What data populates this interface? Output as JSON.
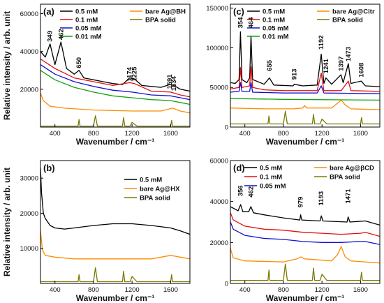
{
  "chart_data": [
    {
      "panel": "(a)",
      "type": "line",
      "xlabel": "Wavenumber / cm⁻¹",
      "ylabel": "Relative intensity / arb. unit",
      "xlim": [
        250,
        1800
      ],
      "ylim": [
        0,
        65000
      ],
      "xticks": [
        400,
        800,
        1200,
        1600
      ],
      "yticks": [
        20000,
        40000,
        60000
      ],
      "legend": "top",
      "grid": false,
      "peak_labels": [
        {
          "text": "349",
          "x": 349,
          "y": 44000
        },
        {
          "text": "462",
          "x": 462,
          "y": 45000
        },
        {
          "text": "650",
          "x": 650,
          "y": 30000
        },
        {
          "text": "1174",
          "x": 1174,
          "y": 23000
        },
        {
          "text": "1225",
          "x": 1225,
          "y": 23000
        },
        {
          "text": "1591",
          "x": 1591,
          "y": 19000
        },
        {
          "text": "1634",
          "x": 1634,
          "y": 18000
        }
      ],
      "series": [
        {
          "name": "0.5 mM",
          "color": "#000000",
          "x": [
            250,
            300,
            349,
            400,
            462,
            520,
            600,
            650,
            700,
            800,
            900,
            1000,
            1100,
            1174,
            1225,
            1300,
            1400,
            1500,
            1591,
            1634,
            1700,
            1800
          ],
          "y": [
            40000,
            37000,
            44000,
            33000,
            45000,
            31000,
            28000,
            30000,
            26000,
            25000,
            24000,
            23000,
            22500,
            26000,
            25500,
            22000,
            21500,
            21000,
            22500,
            22000,
            20000,
            19000
          ]
        },
        {
          "name": "0.1 mM",
          "color": "#e01010",
          "x": [
            250,
            400,
            600,
            800,
            1000,
            1174,
            1225,
            1400,
            1600,
            1700,
            1800
          ],
          "y": [
            36000,
            31000,
            26000,
            24000,
            22000,
            23500,
            23000,
            19000,
            18500,
            17000,
            16000
          ]
        },
        {
          "name": "0.05 mM",
          "color": "#1010d0",
          "x": [
            250,
            400,
            600,
            800,
            1000,
            1200,
            1400,
            1600,
            1700,
            1800
          ],
          "y": [
            33000,
            28000,
            24000,
            21500,
            19500,
            18500,
            17000,
            16500,
            15500,
            14500
          ]
        },
        {
          "name": "0.01 mM",
          "color": "#12a012",
          "x": [
            250,
            400,
            600,
            800,
            1000,
            1200,
            1400,
            1600,
            1700,
            1800
          ],
          "y": [
            30000,
            25000,
            21000,
            18500,
            16500,
            15500,
            14500,
            14000,
            13000,
            12000
          ]
        },
        {
          "name": "bare Ag@BH",
          "color": "#ff8c00",
          "x": [
            250,
            280,
            350,
            500,
            800,
            1200,
            1500,
            1620,
            1700,
            1800
          ],
          "y": [
            18000,
            14000,
            11000,
            10000,
            9000,
            8500,
            8500,
            10000,
            8500,
            7500
          ]
        },
        {
          "name": "BPA solid",
          "color": "#7a7a00",
          "x": [
            250,
            400,
            640,
            650,
            660,
            800,
            820,
            840,
            900,
            1100,
            1112,
            1124,
            1180,
            1200,
            1250,
            1450,
            1600,
            1610,
            1620,
            1800
          ],
          "y": [
            500,
            500,
            500,
            4000,
            500,
            500,
            6000,
            500,
            500,
            500,
            5000,
            500,
            500,
            2500,
            500,
            500,
            500,
            3500,
            500,
            500
          ]
        }
      ]
    },
    {
      "panel": "(b)",
      "type": "line",
      "xlabel": "Wavenumber / cm⁻¹",
      "ylabel": "Relative intensity / arb. unit",
      "xlim": [
        250,
        1800
      ],
      "ylim": [
        0,
        35000
      ],
      "xticks": [
        400,
        800,
        1200,
        1600
      ],
      "yticks": [
        10000,
        20000,
        30000
      ],
      "legend": "top-right",
      "grid": false,
      "series": [
        {
          "name": "0.5 mM",
          "color": "#000000",
          "x": [
            250,
            260,
            280,
            300,
            350,
            400,
            500,
            600,
            800,
            1000,
            1200,
            1400,
            1600,
            1700,
            1800
          ],
          "y": [
            33000,
            26000,
            20000,
            18500,
            16500,
            15800,
            15500,
            15800,
            16500,
            17000,
            17000,
            16500,
            15800,
            15000,
            14000
          ]
        },
        {
          "name": "bare Ag@HX",
          "color": "#ff8c00",
          "x": [
            250,
            270,
            300,
            400,
            600,
            800,
            1000,
            1200,
            1400,
            1600,
            1700,
            1800
          ],
          "y": [
            15000,
            9500,
            8000,
            7500,
            7000,
            7000,
            7000,
            7000,
            7000,
            8000,
            7500,
            7000
          ]
        },
        {
          "name": "BPA solid",
          "color": "#7a7a00",
          "x": [
            250,
            400,
            640,
            650,
            660,
            800,
            820,
            840,
            900,
            1100,
            1112,
            1124,
            1180,
            1200,
            1250,
            1450,
            1600,
            1610,
            1620,
            1800
          ],
          "y": [
            500,
            500,
            500,
            2500,
            500,
            500,
            4500,
            500,
            500,
            500,
            3500,
            500,
            500,
            2000,
            500,
            500,
            500,
            2500,
            500,
            500
          ]
        }
      ]
    },
    {
      "panel": "(c)",
      "type": "line",
      "xlabel": "Wavenumber / cm⁻¹",
      "ylabel": "",
      "xlim": [
        250,
        1800
      ],
      "ylim": [
        0,
        155000
      ],
      "xticks": [
        400,
        800,
        1200,
        1600
      ],
      "yticks": [
        0,
        50000,
        100000,
        150000
      ],
      "legend": "top",
      "grid": false,
      "peak_labels": [
        {
          "text": "354",
          "x": 354,
          "y": 122000
        },
        {
          "text": "464",
          "x": 464,
          "y": 122000
        },
        {
          "text": "655",
          "x": 655,
          "y": 68000
        },
        {
          "text": "913",
          "x": 913,
          "y": 57000
        },
        {
          "text": "1192",
          "x": 1192,
          "y": 95000
        },
        {
          "text": "1241",
          "x": 1241,
          "y": 65000
        },
        {
          "text": "1397",
          "x": 1397,
          "y": 68000
        },
        {
          "text": "1473",
          "x": 1473,
          "y": 80000
        },
        {
          "text": "1608",
          "x": 1608,
          "y": 60000
        }
      ],
      "series": [
        {
          "name": "0.5 mM",
          "color": "#000000",
          "x": [
            250,
            300,
            340,
            354,
            370,
            420,
            450,
            464,
            480,
            600,
            655,
            700,
            900,
            913,
            1000,
            1150,
            1192,
            1220,
            1241,
            1300,
            1397,
            1420,
            1473,
            1500,
            1608,
            1650,
            1800
          ],
          "y": [
            56000,
            55000,
            60000,
            120000,
            60000,
            56000,
            62000,
            115000,
            60000,
            54000,
            62000,
            53000,
            52000,
            54000,
            52000,
            53000,
            92000,
            55000,
            62000,
            54000,
            66000,
            56000,
            80000,
            55000,
            58000,
            52000,
            51000
          ]
        },
        {
          "name": "0.1 mM",
          "color": "#e01010",
          "x": [
            250,
            340,
            354,
            370,
            450,
            464,
            480,
            600,
            800,
            1150,
            1192,
            1220,
            1400,
            1473,
            1500,
            1800
          ],
          "y": [
            48000,
            50000,
            75000,
            50000,
            52000,
            76000,
            50000,
            47000,
            46000,
            46000,
            68000,
            46000,
            46000,
            58000,
            46000,
            45000
          ]
        },
        {
          "name": "0.05 mM",
          "color": "#1010d0",
          "x": [
            250,
            340,
            354,
            370,
            450,
            464,
            480,
            800,
            1150,
            1192,
            1220,
            1800
          ],
          "y": [
            44000,
            45000,
            56000,
            45000,
            45000,
            56000,
            44000,
            43000,
            43000,
            52000,
            43000,
            42000
          ]
        },
        {
          "name": "0.01 mM",
          "color": "#12a012",
          "x": [
            250,
            800,
            1800
          ],
          "y": [
            36000,
            35000,
            34000
          ]
        },
        {
          "name": "bare Ag@Citr",
          "color": "#ff8c00",
          "x": [
            250,
            600,
            900,
            1000,
            1020,
            1040,
            1300,
            1360,
            1400,
            1440,
            1500,
            1800
          ],
          "y": [
            24000,
            23000,
            23000,
            24000,
            27000,
            24000,
            24000,
            30000,
            34000,
            28000,
            23000,
            22000
          ]
        },
        {
          "name": "BPA solid",
          "color": "#7a7a00",
          "x": [
            250,
            400,
            640,
            650,
            660,
            800,
            820,
            840,
            900,
            1100,
            1112,
            1124,
            1180,
            1200,
            1250,
            1450,
            1600,
            1610,
            1620,
            1800
          ],
          "y": [
            4000,
            4000,
            4000,
            14000,
            4000,
            4000,
            20000,
            4000,
            4000,
            4000,
            16000,
            4000,
            4000,
            10000,
            4000,
            4000,
            4000,
            12000,
            4000,
            4000
          ]
        }
      ]
    },
    {
      "panel": "(d)",
      "type": "line",
      "xlabel": "Wavenumber / cm⁻¹",
      "ylabel": "",
      "xlim": [
        250,
        1800
      ],
      "ylim": [
        0,
        60000
      ],
      "xticks": [
        400,
        800,
        1200,
        1600
      ],
      "yticks": [
        0,
        20000,
        40000,
        60000
      ],
      "legend": "top",
      "grid": false,
      "peak_labels": [
        {
          "text": "356",
          "x": 356,
          "y": 41500
        },
        {
          "text": "462",
          "x": 462,
          "y": 41000
        },
        {
          "text": "979",
          "x": 979,
          "y": 36000
        },
        {
          "text": "1193",
          "x": 1193,
          "y": 37000
        },
        {
          "text": "1471",
          "x": 1471,
          "y": 38000
        }
      ],
      "series": [
        {
          "name": "0.5 mM",
          "color": "#000000",
          "x": [
            250,
            330,
            356,
            380,
            440,
            462,
            490,
            600,
            800,
            970,
            979,
            990,
            1180,
            1193,
            1210,
            1460,
            1471,
            1490,
            1650,
            1800
          ],
          "y": [
            37500,
            35500,
            38500,
            35000,
            35000,
            37500,
            34500,
            33500,
            32000,
            31000,
            33500,
            31000,
            30500,
            33000,
            30500,
            30000,
            32500,
            30000,
            30500,
            28500
          ]
        },
        {
          "name": "0.1 mM",
          "color": "#e01010",
          "x": [
            250,
            280,
            400,
            600,
            800,
            1000,
            1200,
            1400,
            1600,
            1650,
            1800
          ],
          "y": [
            34500,
            31000,
            28000,
            26500,
            26000,
            25000,
            24500,
            24000,
            24500,
            25000,
            23000
          ]
        },
        {
          "name": "0.05 mM",
          "color": "#1010d0",
          "x": [
            250,
            280,
            400,
            600,
            800,
            1000,
            1200,
            1400,
            1600,
            1650,
            1800
          ],
          "y": [
            30000,
            26500,
            23500,
            22000,
            21500,
            20500,
            20000,
            20000,
            20500,
            20500,
            19000
          ]
        },
        {
          "name": "bare Ag@βCD",
          "color": "#ff8c00",
          "x": [
            250,
            280,
            400,
            800,
            940,
            980,
            1020,
            1300,
            1360,
            1400,
            1440,
            1500,
            1800
          ],
          "y": [
            17000,
            12500,
            11000,
            10500,
            12000,
            13000,
            12000,
            11000,
            14000,
            18000,
            13000,
            11000,
            10000
          ]
        },
        {
          "name": "BPA solid",
          "color": "#7a7a00",
          "x": [
            250,
            400,
            640,
            650,
            660,
            800,
            820,
            840,
            900,
            1100,
            1112,
            1124,
            1180,
            1200,
            1250,
            1450,
            1600,
            1610,
            1620,
            1800
          ],
          "y": [
            1500,
            1500,
            1500,
            6500,
            1500,
            1500,
            9500,
            1500,
            1500,
            1500,
            7500,
            1500,
            1500,
            4500,
            1500,
            1500,
            1500,
            5500,
            1500,
            1500
          ]
        }
      ]
    }
  ]
}
